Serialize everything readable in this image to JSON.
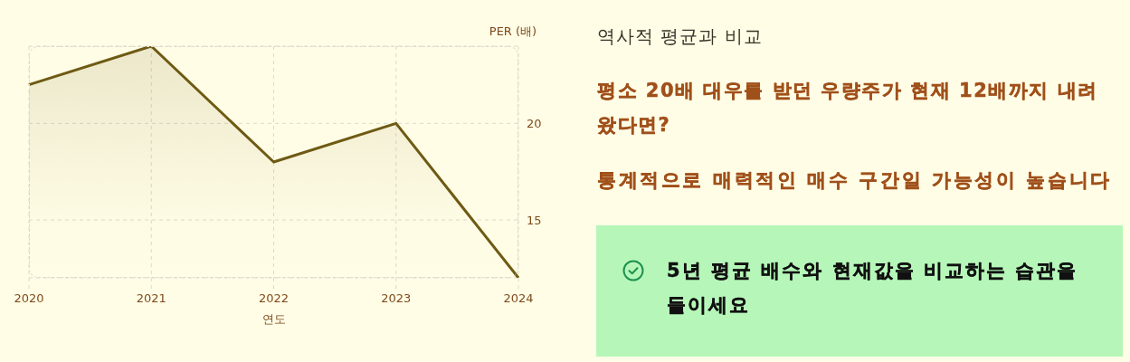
{
  "chart_data": [
    {
      "type": "area",
      "categories": [
        "2020",
        "2021",
        "2022",
        "2023",
        "2024"
      ],
      "values": [
        22,
        24,
        18,
        20,
        12
      ],
      "color": "#6e5a14",
      "ylim": [
        12,
        24
      ],
      "yticks": [
        15,
        20
      ],
      "ylabel": "PER (배)",
      "xlabel": "연도",
      "grid": true
    },
    {
      "type": "other",
      "title": "역사적 평균과 비교",
      "annotations": [
        "평소 20배 대우를 받던 우량주가 현재 12배까지 내려왔다면?",
        "통계적으로 매력적인 매수 구간일 가능성이 높습니다",
        "5년 평균 배수와 현재값을 비교하는 습관을 들이세요"
      ]
    }
  ]
}
